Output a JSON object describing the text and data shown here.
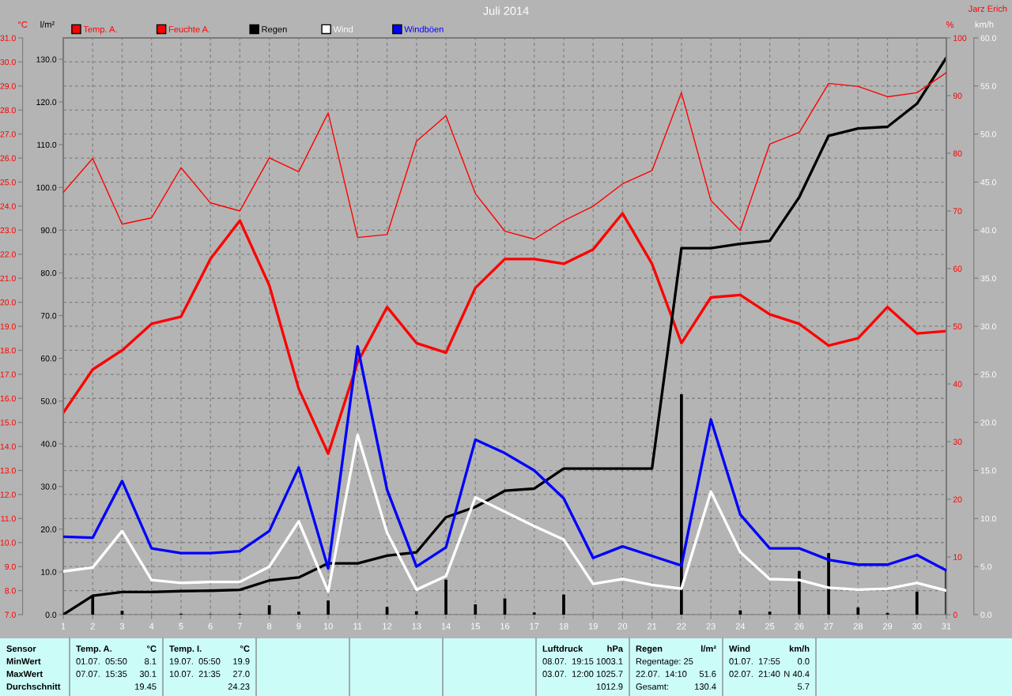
{
  "chart_data": [
    {
      "type": "line",
      "title": "Juli 2014",
      "ylabel": "°C",
      "y2label": "l/m²",
      "y3label": "%",
      "x": [
        1,
        2,
        3,
        4,
        5,
        6,
        7,
        8,
        9,
        10,
        11,
        12,
        13,
        14,
        15,
        16,
        17,
        18,
        19,
        20,
        21,
        22,
        23,
        24,
        25,
        26,
        27,
        28,
        29,
        30,
        31
      ],
      "xlim": [
        1,
        31
      ],
      "xticks": [
        1,
        2,
        3,
        4,
        5,
        6,
        7,
        8,
        9,
        10,
        11,
        12,
        13,
        14,
        15,
        16,
        17,
        18,
        19,
        20,
        21,
        22,
        23,
        24,
        25,
        26,
        27,
        28,
        29,
        30,
        31
      ],
      "ylim": [
        7,
        31
      ],
      "yticks": [
        {
          "value": 7,
          "label": "7.0"
        },
        {
          "value": 8,
          "label": "8.0"
        },
        {
          "value": 9,
          "label": "9.0"
        },
        {
          "value": 10,
          "label": "10.0"
        },
        {
          "value": 11,
          "label": "11.0"
        },
        {
          "value": 12,
          "label": "12.0"
        },
        {
          "value": 13,
          "label": "13.0"
        },
        {
          "value": 14,
          "label": "14.0"
        },
        {
          "value": 15,
          "label": "15.0"
        },
        {
          "value": 16,
          "label": "16.0"
        },
        {
          "value": 17,
          "label": "17.0"
        },
        {
          "value": 18,
          "label": "18.0"
        },
        {
          "value": 19,
          "label": "19.0"
        },
        {
          "value": 20,
          "label": "20.0"
        },
        {
          "value": 21,
          "label": "21.0"
        },
        {
          "value": 22,
          "label": "22.0"
        },
        {
          "value": 23,
          "label": "23.0"
        },
        {
          "value": 24,
          "label": "24.0"
        },
        {
          "value": 25,
          "label": "25.0"
        },
        {
          "value": 26,
          "label": "26.0"
        },
        {
          "value": 27,
          "label": "27.0"
        },
        {
          "value": 28,
          "label": "28.0"
        },
        {
          "value": 29,
          "label": "29.0"
        },
        {
          "value": 30,
          "label": "30.0"
        },
        {
          "value": 31,
          "label": "31.0"
        }
      ],
      "y2lim": [
        0,
        135
      ],
      "y2ticks": [
        {
          "value": 0,
          "label": "0.0"
        },
        {
          "value": 10,
          "label": "10.0"
        },
        {
          "value": 20,
          "label": "20.0"
        },
        {
          "value": 30,
          "label": "30.0"
        },
        {
          "value": 40,
          "label": "40.0"
        },
        {
          "value": 50,
          "label": "50.0"
        },
        {
          "value": 60,
          "label": "60.0"
        },
        {
          "value": 70,
          "label": "70.0"
        },
        {
          "value": 80,
          "label": "80.0"
        },
        {
          "value": 90,
          "label": "90.0"
        },
        {
          "value": 100,
          "label": "100.0"
        },
        {
          "value": 110,
          "label": "110.0"
        },
        {
          "value": 120,
          "label": "120.0"
        },
        {
          "value": 130,
          "label": "130.0"
        }
      ],
      "y3lim": [
        0,
        100
      ],
      "y3ticks": [
        0,
        10,
        20,
        30,
        40,
        50,
        60,
        70,
        80,
        90,
        100
      ],
      "grid": true,
      "legend": "top",
      "series": [
        {
          "type": "bar",
          "axis": "y2",
          "color": "#000000",
          "values": [
            0,
            4.4,
            0.9,
            0,
            0.2,
            0.1,
            0.2,
            2.2,
            0.7,
            3.3,
            0,
            1.8,
            0.8,
            8.2,
            2.4,
            3.8,
            0.5,
            4.7,
            0,
            0,
            0,
            51.6,
            0,
            1.0,
            0.7,
            10.2,
            14.4,
            1.7,
            0.4,
            5.4,
            10.6
          ]
        },
        {
          "axis": "y3",
          "name": "Feuchte A.",
          "color": "#ff0000",
          "values": [
            73.2,
            79.1,
            67.7,
            68.8,
            77.5,
            71.4,
            70.0,
            79.2,
            76.8,
            87.0,
            65.4,
            65.9,
            82.1,
            86.5,
            73.0,
            66.5,
            65.1,
            68.3,
            70.8,
            74.7,
            77.0,
            90.5,
            71.8,
            66.6,
            81.6,
            83.6,
            92.1,
            91.6,
            89.8,
            90.5,
            94.0
          ]
        },
        {
          "axis": "y2",
          "name": "Regen",
          "color": "#000000",
          "values": [
            0,
            4.4,
            5.3,
            5.3,
            5.5,
            5.6,
            5.8,
            8.0,
            8.7,
            12.0,
            12.0,
            13.8,
            14.6,
            22.8,
            25.2,
            29.0,
            29.5,
            34.2,
            34.2,
            34.2,
            34.2,
            85.8,
            85.8,
            86.8,
            87.5,
            97.7,
            112.1,
            113.8,
            114.2,
            119.6,
            130.4
          ]
        },
        {
          "name": "Temp. A.",
          "color": "#ff0000",
          "values": [
            15.4,
            17.2,
            18.0,
            19.1,
            19.4,
            21.8,
            23.4,
            20.7,
            16.4,
            13.7,
            17.5,
            19.8,
            18.3,
            17.9,
            20.6,
            21.8,
            21.8,
            21.6,
            22.2,
            23.7,
            21.6,
            18.3,
            20.2,
            20.3,
            19.5,
            19.1,
            18.2,
            18.5,
            19.8,
            18.7,
            18.8
          ]
        }
      ],
      "annotations": [
        "Jarz Erich",
        "Sensor\nMinWert\nMaxWert\nDurchschnitt",
        "Temp. A.\n01.07.  05:50\n07.07.  15:35",
        "°C\n8.1\n30.1\n19.45",
        "Temp. I.\n19.07.  05:50\n10.07.  21:35",
        "°C\n19.9\n27.0\n24.23",
        "Luftdruck\n08.07.  19:15\n03.07.  12:00",
        "hPa\n1003.1\n1025.7\n1012.9",
        "Regen\nRegentage: 25\n22.07.  14:10\nGesamt:",
        "l/m²\n\n51.6\n130.4",
        "Wind\n01.07.  17:55\n02.07.  21:40",
        "km/h\n0.0\nN 40.4\n5.7"
      ]
    },
    {
      "type": "line",
      "ylabel": "km/h",
      "tick_labels": "y",
      "legend": "top",
      "x": [
        1,
        2,
        3,
        4,
        5,
        6,
        7,
        8,
        9,
        10,
        11,
        12,
        13,
        14,
        15,
        16,
        17,
        18,
        19,
        20,
        21,
        22,
        23,
        24,
        25,
        26,
        27,
        28,
        29,
        30,
        31
      ],
      "xlim": [
        1,
        31
      ],
      "ylim": [
        0,
        60
      ],
      "yticks": [
        {
          "value": 0,
          "label": "0.0"
        },
        {
          "value": 5,
          "label": "5.0"
        },
        {
          "value": 10,
          "label": "10.0"
        },
        {
          "value": 15,
          "label": "15.0"
        },
        {
          "value": 20,
          "label": "20.0"
        },
        {
          "value": 25,
          "label": "25.0"
        },
        {
          "value": 30,
          "label": "30.0"
        },
        {
          "value": 35,
          "label": "35.0"
        },
        {
          "value": 40,
          "label": "40.0"
        },
        {
          "value": 45,
          "label": "45.0"
        },
        {
          "value": 50,
          "label": "50.0"
        },
        {
          "value": 55,
          "label": "55.0"
        },
        {
          "value": 60,
          "label": "60.0"
        }
      ],
      "series": [
        {
          "name": "Wind",
          "color": "#ffffff",
          "values": [
            4.5,
            4.9,
            8.7,
            3.6,
            3.3,
            3.4,
            3.4,
            5.0,
            9.7,
            2.4,
            18.7,
            8.5,
            2.6,
            4.0,
            12.2,
            10.7,
            9.2,
            7.8,
            3.2,
            3.7,
            3.1,
            2.7,
            12.8,
            6.5,
            3.7,
            3.6,
            2.8,
            2.6,
            2.7,
            3.3,
            2.5
          ]
        },
        {
          "name": "Windböen",
          "color": "#0000ff",
          "values": [
            8.1,
            8.0,
            13.9,
            6.9,
            6.4,
            6.4,
            6.6,
            8.7,
            15.3,
            4.8,
            27.9,
            13.0,
            5.0,
            7.0,
            18.2,
            16.8,
            15.0,
            12.1,
            5.9,
            7.1,
            6.1,
            5.1,
            20.3,
            10.4,
            6.9,
            6.9,
            5.7,
            5.2,
            5.2,
            6.2,
            4.6
          ]
        }
      ]
    }
  ]
}
